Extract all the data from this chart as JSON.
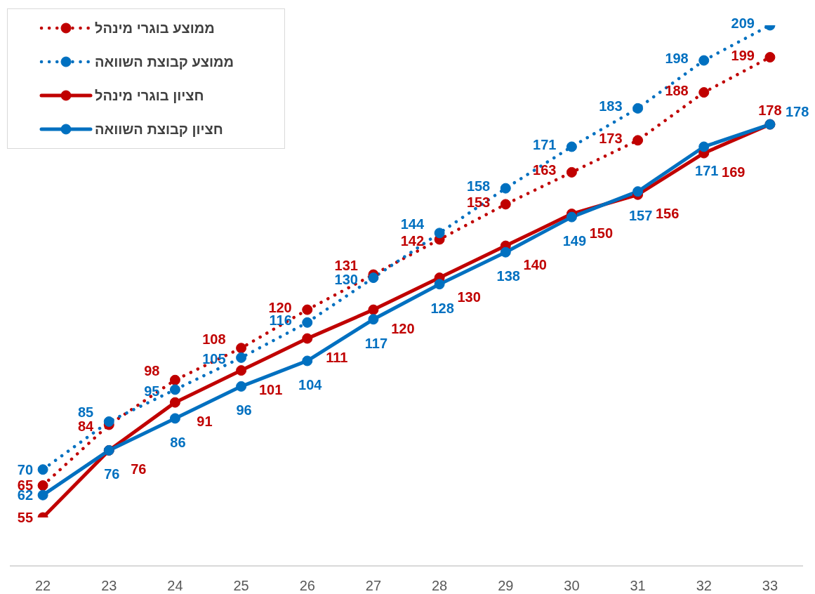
{
  "chart_data": {
    "type": "line",
    "categories": [
      "22",
      "23",
      "24",
      "25",
      "26",
      "27",
      "28",
      "29",
      "30",
      "31",
      "32",
      "33"
    ],
    "series": [
      {
        "name": "ממוצע בוגרי מינהל",
        "color": "#c00000",
        "line_style": "dotted",
        "values": [
          65,
          84,
          98,
          108,
          120,
          131,
          142,
          153,
          163,
          173,
          188,
          199
        ]
      },
      {
        "name": "ממוצע קבוצת השוואה",
        "color": "#0070c0",
        "line_style": "dotted",
        "values": [
          70,
          85,
          95,
          105,
          116,
          130,
          144,
          158,
          171,
          183,
          198,
          209
        ]
      },
      {
        "name": "חציון בוגרי מינהל",
        "color": "#c00000",
        "line_style": "solid",
        "values": [
          55,
          76,
          91,
          101,
          111,
          120,
          130,
          140,
          150,
          156,
          169,
          178
        ]
      },
      {
        "name": "חציון קבוצת השוואה",
        "color": "#0070c0",
        "line_style": "solid",
        "values": [
          62,
          76,
          86,
          96,
          104,
          117,
          128,
          138,
          149,
          157,
          171,
          178
        ]
      }
    ],
    "marker": "circle",
    "legend": "top left",
    "data_labels": true,
    "tick_labels": "x"
  }
}
